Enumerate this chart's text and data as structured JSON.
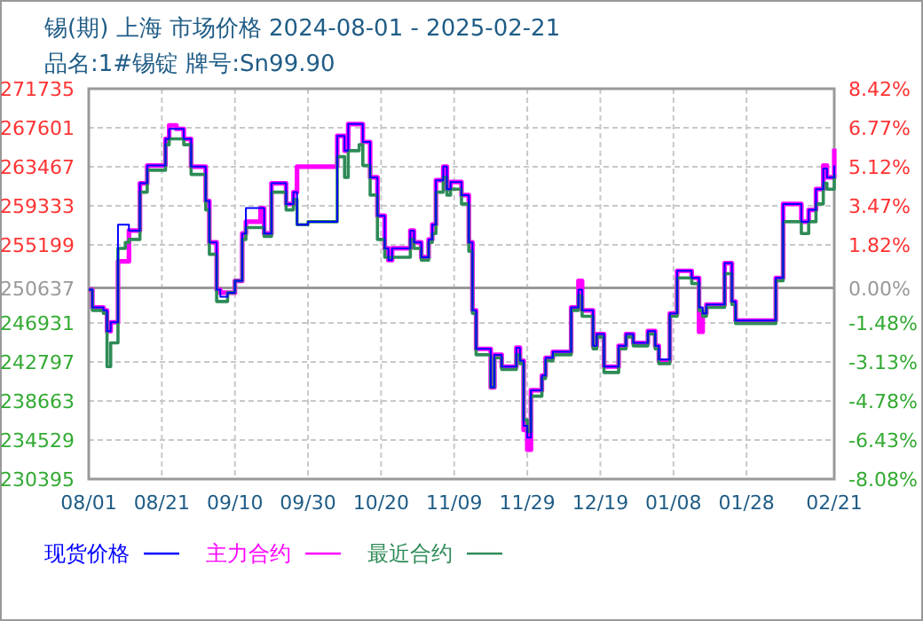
{
  "chart_data": {
    "type": "step",
    "title": "锡(期) 上海 市场价格 2024-08-01 - 2025-02-21",
    "subtitle": "品名:1#锡锭 牌号:Sn99.90",
    "x": [
      "2024-08-01",
      "2024-08-02",
      "2024-08-05",
      "2024-08-06",
      "2024-08-07",
      "2024-08-09",
      "2024-08-11",
      "2024-08-12",
      "2024-08-14",
      "2024-08-15",
      "2024-08-17",
      "2024-08-20",
      "2024-08-22",
      "2024-08-23",
      "2024-08-25",
      "2024-08-27",
      "2024-08-29",
      "2024-09-01",
      "2024-09-02",
      "2024-09-03",
      "2024-09-05",
      "2024-09-06",
      "2024-09-08",
      "2024-09-10",
      "2024-09-12",
      "2024-09-13",
      "2024-09-17",
      "2024-09-18",
      "2024-09-20",
      "2024-09-23",
      "2024-09-24",
      "2024-09-26",
      "2024-09-27",
      "2024-09-30",
      "2024-10-07",
      "2024-10-08",
      "2024-10-10",
      "2024-10-11",
      "2024-10-14",
      "2024-10-15",
      "2024-10-16",
      "2024-10-17",
      "2024-10-19",
      "2024-10-21",
      "2024-10-22",
      "2024-10-23",
      "2024-10-27",
      "2024-10-28",
      "2024-10-29",
      "2024-10-31",
      "2024-11-02",
      "2024-11-03",
      "2024-11-04",
      "2024-11-06",
      "2024-11-07",
      "2024-11-08",
      "2024-11-10",
      "2024-11-11",
      "2024-11-13",
      "2024-11-14",
      "2024-11-15",
      "2024-11-18",
      "2024-11-19",
      "2024-11-20",
      "2024-11-22",
      "2024-11-24",
      "2024-11-26",
      "2024-11-27",
      "2024-11-28",
      "2024-11-29",
      "2024-11-30",
      "2024-12-02",
      "2024-12-03",
      "2024-12-04",
      "2024-12-06",
      "2024-12-09",
      "2024-12-11",
      "2024-12-13",
      "2024-12-14",
      "2024-12-16",
      "2024-12-17",
      "2024-12-18",
      "2024-12-20",
      "2024-12-22",
      "2024-12-24",
      "2024-12-26",
      "2024-12-28",
      "2024-12-30",
      "2025-01-01",
      "2025-01-03",
      "2025-01-04",
      "2025-01-06",
      "2025-01-07",
      "2025-01-09",
      "2025-01-13",
      "2025-01-15",
      "2025-01-16",
      "2025-01-17",
      "2025-01-21",
      "2025-01-22",
      "2025-01-24",
      "2025-01-25",
      "2025-02-04",
      "2025-02-05",
      "2025-02-07",
      "2025-02-11",
      "2025-02-12",
      "2025-02-14",
      "2025-02-16",
      "2025-02-18",
      "2025-02-19",
      "2025-02-21"
    ],
    "series": [
      {
        "name": "现货价格",
        "color": "#0000ff",
        "values": [
          250450,
          248570,
          248260,
          246065,
          247000,
          257340,
          257340,
          256710,
          256710,
          261724,
          263600,
          263600,
          266420,
          267485,
          267485,
          266420,
          263480,
          263480,
          259845,
          255460,
          250450,
          249700,
          250136,
          251390,
          256400,
          259093,
          259093,
          256400,
          261724,
          261724,
          259530,
          260780,
          257340,
          257650,
          257650,
          266735,
          265170,
          267990,
          267990,
          266100,
          266100,
          262350,
          258280,
          254830,
          253580,
          254830,
          254830,
          256710,
          255460,
          253890,
          255770,
          257340,
          262040,
          263480,
          261100,
          261850,
          261850,
          260470,
          255460,
          248260,
          244185,
          244185,
          240115,
          243560,
          242305,
          242305,
          244310,
          242930,
          236040,
          234790,
          239800,
          239800,
          241366,
          243245,
          243870,
          243870,
          248570,
          250450,
          248260,
          248260,
          244500,
          245750,
          242305,
          242305,
          244500,
          245750,
          244810,
          244810,
          246065,
          244500,
          243060,
          243060,
          247940,
          252450,
          251700,
          248570,
          247940,
          248880,
          248880,
          253270,
          249200,
          247190,
          247190,
          251700,
          259530,
          259530,
          257650,
          258900,
          261100,
          263290,
          262350,
          263600
        ]
      },
      {
        "name": "主力合约",
        "color": "#ff00ff",
        "values": [
          250450,
          248570,
          248260,
          246065,
          247000,
          253455,
          253455,
          256710,
          256710,
          261724,
          263600,
          263600,
          266420,
          267860,
          267485,
          266420,
          263480,
          263480,
          259845,
          255460,
          250450,
          250136,
          250136,
          251390,
          256400,
          257650,
          259093,
          256400,
          261724,
          261724,
          259530,
          260780,
          263480,
          263480,
          263480,
          266735,
          265170,
          267990,
          267990,
          266100,
          266100,
          262350,
          258280,
          254830,
          253580,
          254830,
          254830,
          256710,
          255460,
          253890,
          255770,
          257340,
          262040,
          263480,
          261100,
          261850,
          261850,
          260470,
          255460,
          248260,
          244185,
          244185,
          240115,
          243560,
          242305,
          242305,
          244310,
          242930,
          235600,
          233500,
          239800,
          239800,
          241366,
          243245,
          243870,
          243870,
          248570,
          251390,
          248260,
          248260,
          244500,
          245750,
          242305,
          242305,
          244500,
          245750,
          244810,
          244810,
          246065,
          244500,
          242930,
          242930,
          247940,
          252450,
          251700,
          246000,
          247940,
          248880,
          248880,
          253270,
          249200,
          247190,
          247190,
          251700,
          259530,
          259530,
          257650,
          258900,
          261100,
          263600,
          262350,
          265400
        ]
      },
      {
        "name": "最近合约",
        "color": "#2e8b57",
        "values": [
          250450,
          248260,
          247940,
          242300,
          244810,
          254830,
          255460,
          255770,
          255770,
          260780,
          263100,
          263100,
          265800,
          266420,
          266420,
          265800,
          262660,
          262660,
          258900,
          254200,
          249200,
          249200,
          250136,
          251390,
          255770,
          257030,
          257030,
          256100,
          260780,
          260780,
          258900,
          260000,
          257340,
          257650,
          257650,
          264540,
          262350,
          265170,
          265800,
          263600,
          263600,
          260470,
          255770,
          253890,
          253890,
          253890,
          253890,
          255770,
          254830,
          253580,
          255460,
          256400,
          260780,
          262350,
          260470,
          261100,
          261100,
          259530,
          254520,
          247940,
          243560,
          243560,
          240115,
          243245,
          242000,
          242000,
          243560,
          242620,
          236670,
          235420,
          239170,
          239170,
          241050,
          242930,
          243560,
          243560,
          248260,
          249820,
          247630,
          247630,
          244185,
          245440,
          241680,
          241680,
          244185,
          245440,
          244500,
          244500,
          245750,
          244185,
          242620,
          242620,
          247630,
          251700,
          251100,
          248260,
          247630,
          248570,
          248570,
          252140,
          248880,
          246870,
          246870,
          251390,
          257650,
          257650,
          256400,
          257650,
          259530,
          261724,
          261100,
          262660
        ]
      }
    ],
    "xlim": [
      "2024-08-01",
      "2025-02-21"
    ],
    "xticks": [
      {
        "value": "2024-08-01",
        "label": "08/01"
      },
      {
        "value": "2024-08-21",
        "label": "08/21"
      },
      {
        "value": "2024-09-10",
        "label": "09/10"
      },
      {
        "value": "2024-09-30",
        "label": "09/30"
      },
      {
        "value": "2024-10-20",
        "label": "10/20"
      },
      {
        "value": "2024-11-09",
        "label": "11/09"
      },
      {
        "value": "2024-11-29",
        "label": "11/29"
      },
      {
        "value": "2024-12-19",
        "label": "12/19"
      },
      {
        "value": "2025-01-08",
        "label": "01/08"
      },
      {
        "value": "2025-01-28",
        "label": "01/28"
      },
      {
        "value": "2025-02-21",
        "label": "02/21"
      }
    ],
    "ylim": [
      230395,
      271735
    ],
    "yticks": [
      271735,
      267601,
      263467,
      259333,
      255199,
      250637,
      246931,
      242797,
      238663,
      234529,
      230395
    ],
    "y2lim": [
      -8.08,
      8.42
    ],
    "y2ticks": [
      {
        "value": 8.42,
        "label": "8.42%"
      },
      {
        "value": 6.77,
        "label": "6.77%"
      },
      {
        "value": 5.12,
        "label": "5.12%"
      },
      {
        "value": 3.47,
        "label": "3.47%"
      },
      {
        "value": 1.82,
        "label": "1.82%"
      },
      {
        "value": 0,
        "label": "0.00%"
      },
      {
        "value": -1.48,
        "label": "-1.48%"
      },
      {
        "value": -3.13,
        "label": "-3.13%"
      },
      {
        "value": -4.78,
        "label": "-4.78%"
      },
      {
        "value": -6.43,
        "label": "-6.43%"
      },
      {
        "value": -8.08,
        "label": "-8.08%"
      }
    ],
    "ref_lines": [
      {
        "axis": "y",
        "value": 250637,
        "color": "#999999"
      }
    ],
    "grid": true,
    "legend": "bottom",
    "marker": "none",
    "line_style": "solid"
  }
}
